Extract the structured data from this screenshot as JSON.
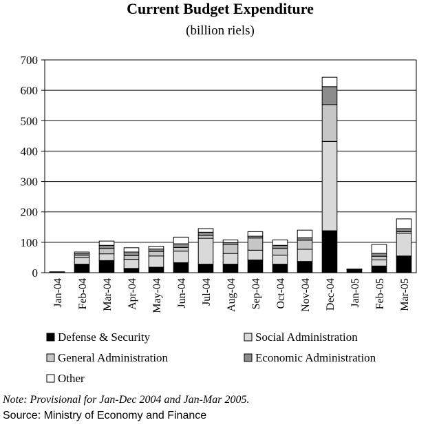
{
  "chart_data": {
    "type": "stacked_bar",
    "title": "Current Budget Expenditure",
    "subtitle": "(billion riels)",
    "categories": [
      "Jan-04",
      "Feb-04",
      "Mar-04",
      "Apr-04",
      "May-04",
      "Jun-04",
      "Jul-04",
      "Aug-04",
      "Sep-04",
      "Oct-04",
      "Nov-04",
      "Dec-04",
      "Jan-05",
      "Feb-05",
      "Mar-05"
    ],
    "series": [
      {
        "name": "Defense & Security",
        "color": "#000000",
        "values": [
          1,
          28,
          40,
          14,
          18,
          33,
          28,
          28,
          42,
          28,
          37,
          138,
          10,
          22,
          55
        ]
      },
      {
        "name": "Social Administration",
        "color": "#d9d9d9",
        "values": [
          1,
          22,
          22,
          30,
          37,
          38,
          85,
          35,
          32,
          30,
          40,
          294,
          1,
          20,
          75
        ]
      },
      {
        "name": "General Administration",
        "color": "#c6c6c6",
        "values": [
          1,
          8,
          18,
          12,
          15,
          12,
          10,
          30,
          40,
          22,
          30,
          121,
          1,
          12,
          5
        ]
      },
      {
        "name": "Economic Administration",
        "color": "#8c8c8c",
        "values": [
          0,
          5,
          10,
          12,
          8,
          12,
          10,
          6,
          6,
          10,
          8,
          59,
          0,
          10,
          10
        ]
      },
      {
        "name": "Other",
        "color": "#ffffff",
        "values": [
          0,
          5,
          14,
          14,
          9,
          22,
          12,
          9,
          15,
          18,
          25,
          31,
          0,
          29,
          32
        ]
      }
    ],
    "ylim": [
      0,
      700
    ],
    "yticks": [
      0,
      100,
      200,
      300,
      400,
      500,
      600,
      700
    ],
    "grid": true,
    "note": "Note: Provisional for Jan-Dec 2004 and Jan-Mar 2005.",
    "source": "Source: Ministry of Economy and Finance"
  }
}
